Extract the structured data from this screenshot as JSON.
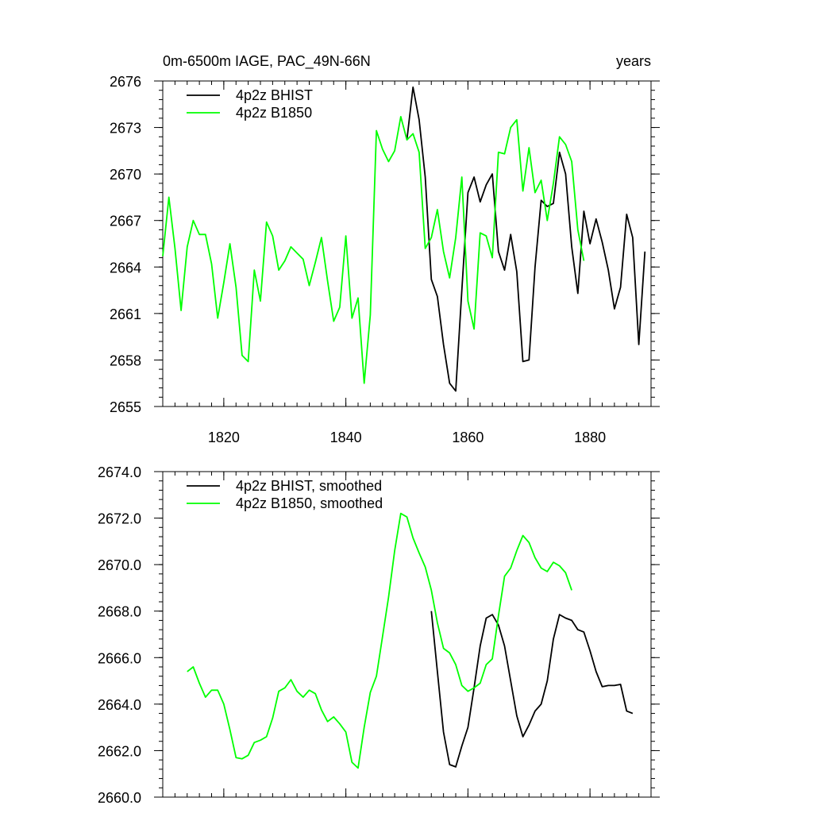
{
  "chart_data": [
    {
      "type": "line",
      "title_left": "0m-6500m IAGE, PAC_49N-66N",
      "title_right": "years",
      "xlim": [
        1810,
        1890
      ],
      "ylim": [
        2655,
        2676
      ],
      "xticks": [
        1820,
        1840,
        1860,
        1880
      ],
      "xtick_labels": [
        "1820",
        "1840",
        "1860",
        "1880"
      ],
      "yticks": [
        2655,
        2658,
        2661,
        2664,
        2667,
        2670,
        2673,
        2676
      ],
      "ytick_labels": [
        "2655",
        "2658",
        "2661",
        "2664",
        "2667",
        "2670",
        "2673",
        "2676"
      ],
      "legend_position": "top-left",
      "series": [
        {
          "name": "4p2z BHIST",
          "color": "#000000",
          "x": [
            1850,
            1851,
            1852,
            1853,
            1854,
            1855,
            1856,
            1857,
            1858,
            1859,
            1860,
            1861,
            1862,
            1863,
            1864,
            1865,
            1866,
            1867,
            1868,
            1869,
            1870,
            1871,
            1872,
            1873,
            1874,
            1875,
            1876,
            1877,
            1878,
            1879,
            1880,
            1881,
            1882,
            1883,
            1884,
            1885,
            1886,
            1887,
            1888,
            1889
          ],
          "y": [
            2672.2,
            2675.6,
            2673.5,
            2669.8,
            2663.2,
            2662.1,
            2659.0,
            2656.5,
            2656.0,
            2662.5,
            2668.8,
            2669.8,
            2668.2,
            2669.3,
            2670.0,
            2665.0,
            2663.8,
            2666.1,
            2663.7,
            2657.9,
            2658.0,
            2664.0,
            2668.3,
            2667.9,
            2668.1,
            2671.4,
            2670.0,
            2665.3,
            2662.3,
            2667.6,
            2665.5,
            2667.1,
            2665.6,
            2663.8,
            2661.3,
            2662.7,
            2667.4,
            2665.9,
            2659.0,
            2665.0
          ]
        },
        {
          "name": "4p2z B1850",
          "color": "#00ff00",
          "x": [
            1810,
            1811,
            1812,
            1813,
            1814,
            1815,
            1816,
            1817,
            1818,
            1819,
            1820,
            1821,
            1822,
            1823,
            1824,
            1825,
            1826,
            1827,
            1828,
            1829,
            1830,
            1831,
            1832,
            1833,
            1834,
            1835,
            1836,
            1837,
            1838,
            1839,
            1840,
            1841,
            1842,
            1843,
            1844,
            1845,
            1846,
            1847,
            1848,
            1849,
            1850,
            1851,
            1852,
            1853,
            1854,
            1855,
            1856,
            1857,
            1858,
            1859,
            1860,
            1861,
            1862,
            1863,
            1864,
            1865,
            1866,
            1867,
            1868,
            1869,
            1870,
            1871,
            1872,
            1873,
            1874,
            1875,
            1876,
            1877,
            1878,
            1879
          ],
          "y": [
            2664.7,
            2668.5,
            2665.2,
            2661.2,
            2665.3,
            2667.0,
            2666.1,
            2666.1,
            2664.2,
            2660.7,
            2663.0,
            2665.5,
            2662.7,
            2658.3,
            2657.9,
            2663.8,
            2661.8,
            2666.9,
            2666.0,
            2663.8,
            2664.4,
            2665.3,
            2664.9,
            2664.5,
            2662.8,
            2664.3,
            2665.9,
            2663.1,
            2660.5,
            2661.4,
            2666.0,
            2660.7,
            2662.0,
            2656.5,
            2660.9,
            2672.8,
            2671.6,
            2670.8,
            2671.5,
            2673.7,
            2672.2,
            2672.6,
            2671.4,
            2665.2,
            2665.9,
            2667.7,
            2665.0,
            2663.3,
            2665.9,
            2669.8,
            2661.8,
            2660.0,
            2666.2,
            2666.0,
            2664.6,
            2671.4,
            2671.3,
            2673.0,
            2673.5,
            2668.9,
            2671.7,
            2668.8,
            2669.6,
            2667.0,
            2669.4,
            2672.4,
            2671.9,
            2670.8,
            2666.4,
            2664.4
          ]
        }
      ]
    },
    {
      "type": "line",
      "xlim": [
        1810,
        1890
      ],
      "ylim": [
        2660,
        2674
      ],
      "xticks": [
        1820,
        1840,
        1860,
        1880
      ],
      "yticks": [
        2660,
        2662,
        2664,
        2666,
        2668,
        2670,
        2672,
        2674
      ],
      "ytick_labels": [
        "2660.0",
        "2662.0",
        "2664.0",
        "2666.0",
        "2668.0",
        "2670.0",
        "2672.0",
        "2674.0"
      ],
      "legend_position": "top-left",
      "series": [
        {
          "name": "4p2z BHIST, smoothed",
          "color": "#000000",
          "x": [
            1854,
            1855,
            1856,
            1857,
            1858,
            1859,
            1860,
            1861,
            1862,
            1863,
            1864,
            1865,
            1866,
            1867,
            1868,
            1869,
            1870,
            1871,
            1872,
            1873,
            1874,
            1875,
            1876,
            1877,
            1878,
            1879,
            1880,
            1881,
            1882,
            1883,
            1884,
            1885,
            1886,
            1887
          ],
          "y": [
            2668.0,
            2665.4,
            2662.8,
            2661.4,
            2661.3,
            2662.2,
            2663.0,
            2664.7,
            2666.5,
            2667.7,
            2667.85,
            2667.4,
            2666.5,
            2665.0,
            2663.5,
            2662.6,
            2663.1,
            2663.7,
            2664.0,
            2665.0,
            2666.8,
            2667.85,
            2667.7,
            2667.6,
            2667.2,
            2667.1,
            2666.3,
            2665.4,
            2664.75,
            2664.8,
            2664.8,
            2664.85,
            2663.7,
            2663.6
          ]
        },
        {
          "name": "4p2z B1850, smoothed",
          "color": "#00ff00",
          "x": [
            1814,
            1815,
            1816,
            1817,
            1818,
            1819,
            1820,
            1821,
            1822,
            1823,
            1824,
            1825,
            1826,
            1827,
            1828,
            1829,
            1830,
            1831,
            1832,
            1833,
            1834,
            1835,
            1836,
            1837,
            1838,
            1839,
            1840,
            1841,
            1842,
            1843,
            1844,
            1845,
            1846,
            1847,
            1848,
            1849,
            1850,
            1851,
            1852,
            1853,
            1854,
            1855,
            1856,
            1857,
            1858,
            1859,
            1860,
            1861,
            1862,
            1863,
            1864,
            1865,
            1866,
            1867,
            1868,
            1869,
            1870,
            1871,
            1872,
            1873,
            1874,
            1875,
            1876,
            1877
          ],
          "y": [
            2665.4,
            2665.6,
            2664.9,
            2664.3,
            2664.6,
            2664.6,
            2664.0,
            2662.9,
            2661.7,
            2661.65,
            2661.8,
            2662.35,
            2662.45,
            2662.6,
            2663.4,
            2664.55,
            2664.7,
            2665.05,
            2664.55,
            2664.3,
            2664.6,
            2664.45,
            2663.75,
            2663.25,
            2663.45,
            2663.15,
            2662.8,
            2661.5,
            2661.25,
            2663.0,
            2664.5,
            2665.2,
            2666.9,
            2668.6,
            2670.6,
            2672.2,
            2672.05,
            2671.15,
            2670.5,
            2669.9,
            2668.9,
            2667.5,
            2666.4,
            2666.2,
            2665.7,
            2664.8,
            2664.55,
            2664.7,
            2664.9,
            2665.7,
            2665.95,
            2667.8,
            2669.5,
            2669.85,
            2670.6,
            2671.25,
            2670.95,
            2670.3,
            2669.85,
            2669.7,
            2670.1,
            2669.95,
            2669.65,
            2668.9
          ]
        }
      ]
    }
  ]
}
